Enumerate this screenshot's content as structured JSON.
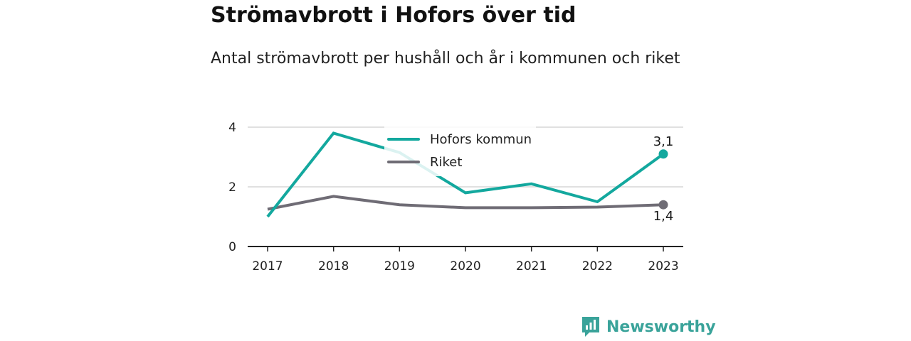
{
  "title": "Strömavbrott i Hofors över tid",
  "subtitle": "Antal strömavbrott per hushåll och år i kommunen och riket",
  "brand": {
    "name": "Newsworthy",
    "color": "#3aa39a"
  },
  "colors": {
    "hofors": "#13a89e",
    "riket": "#6f6c75",
    "grid": "#d6d6d6",
    "axis": "#222222"
  },
  "chart_data": {
    "type": "line",
    "title": "Strömavbrott i Hofors över tid",
    "subtitle": "Antal strömavbrott per hushåll och år i kommunen och riket",
    "x": [
      "2017",
      "2018",
      "2019",
      "2020",
      "2021",
      "2022",
      "2023"
    ],
    "ylim": [
      0,
      4
    ],
    "yticks": [
      "0",
      "2",
      "4"
    ],
    "grid": true,
    "legend_position": "top-center",
    "series": [
      {
        "name": "Hofors kommun",
        "values": [
          1.0,
          3.8,
          3.15,
          1.8,
          2.1,
          1.5,
          3.1
        ],
        "end_label": "3,1"
      },
      {
        "name": "Riket",
        "values": [
          1.25,
          1.68,
          1.4,
          1.3,
          1.3,
          1.32,
          1.4
        ],
        "end_label": "1,4"
      }
    ]
  }
}
